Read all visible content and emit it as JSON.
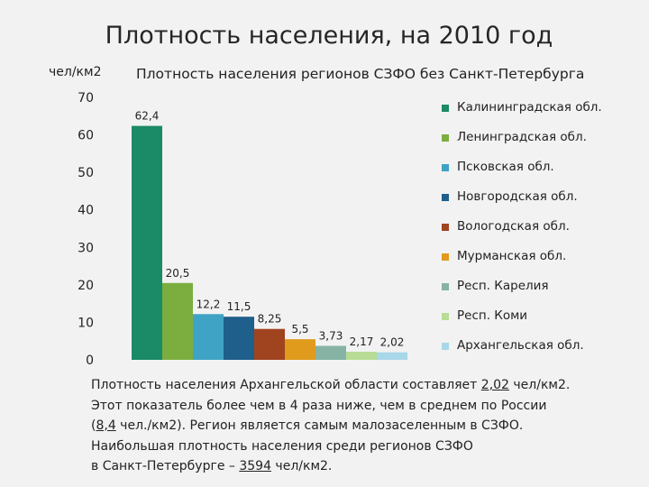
{
  "slide": {
    "title": "Плотность населения, на 2010 год"
  },
  "chart_data": {
    "type": "bar",
    "title": "Плотность населения регионов СЗФО без Санкт-Петербурга",
    "ylabel": "чел/км2",
    "ylim": [
      0,
      70
    ],
    "yticks": [
      "0",
      "10",
      "20",
      "30",
      "40",
      "50",
      "60",
      "70"
    ],
    "grid": false,
    "legend_position": "right",
    "categories": [
      "Калининградская обл.",
      "Ленинградская обл.",
      "Псковская обл.",
      "Новгородская обл.",
      "Вологодская обл.",
      "Мурманская обл.",
      "Респ. Карелия",
      "Респ. Коми",
      "Архангельская обл."
    ],
    "values": [
      62.4,
      20.5,
      12.2,
      11.5,
      8.25,
      5.5,
      3.73,
      2.17,
      2.02
    ],
    "data_labels": [
      "62,4",
      "20,5",
      "12,2",
      "11,5",
      "8,25",
      "5,5",
      "3,73",
      "2,17",
      "2,02"
    ],
    "colors": [
      "#1b8a66",
      "#7cae3f",
      "#3ea3c4",
      "#1f5f8b",
      "#a0431f",
      "#e09a1c",
      "#86b3a4",
      "#b8dc96",
      "#a9d7ea"
    ]
  },
  "note": {
    "line1_pre": "Плотность населения Архангельской области составляет ",
    "line1_val": "2,02",
    "line1_post": " чел/км2.",
    "line2": "Этот показатель более чем в 4 раза ниже, чем в среднем по России",
    "line3_pre": "(",
    "line3_val": "8,4",
    "line3_post": " чел./км2). Регион является самым малозаселенным в СЗФО.",
    "line4": "Наибольшая плотность населения среди регионов СЗФО",
    "line5_pre": "в Санкт-Петербурге – ",
    "line5_val": "3594",
    "line5_post": " чел/км2."
  }
}
